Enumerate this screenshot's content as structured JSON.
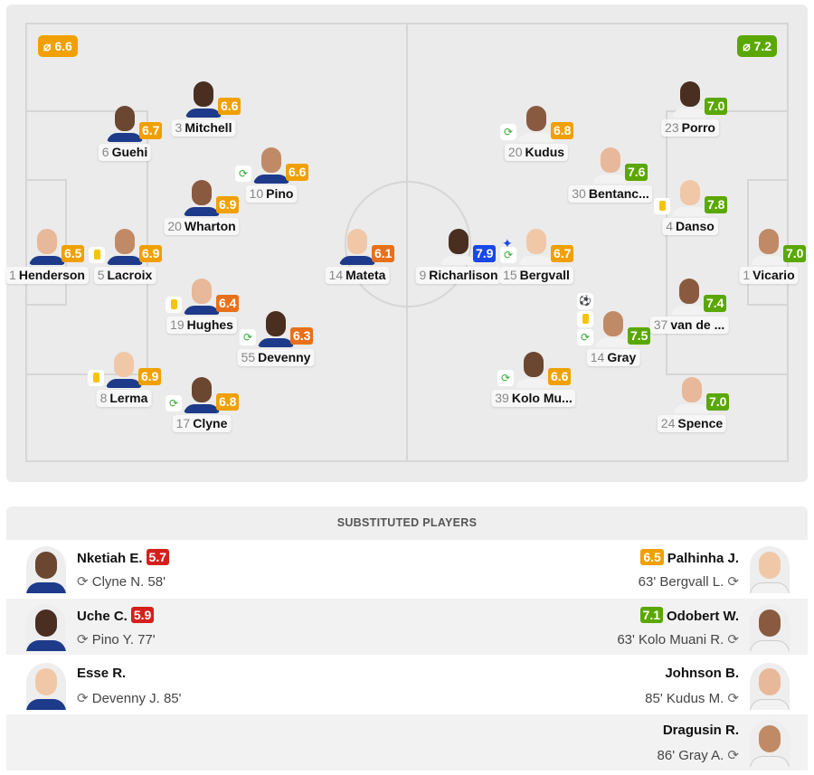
{
  "colors": {
    "green": "#5aa700",
    "orange": "#f0a000",
    "darkorange": "#e8701a",
    "red": "#d4201c",
    "blue": "#1848e8"
  },
  "home": {
    "average": "⌀ 6.6",
    "players": [
      {
        "num": "1",
        "name": "Henderson",
        "rating": "6.5",
        "events": []
      },
      {
        "num": "5",
        "name": "Lacroix",
        "rating": "6.9",
        "events": [
          "yellow-card"
        ]
      },
      {
        "num": "6",
        "name": "Guehi",
        "rating": "6.7",
        "events": []
      },
      {
        "num": "3",
        "name": "Mitchell",
        "rating": "6.6",
        "events": []
      },
      {
        "num": "8",
        "name": "Lerma",
        "rating": "6.9",
        "events": [
          "yellow-card"
        ]
      },
      {
        "num": "20",
        "name": "Wharton",
        "rating": "6.9",
        "events": []
      },
      {
        "num": "19",
        "name": "Hughes",
        "rating": "6.4",
        "events": [
          "yellow-card"
        ]
      },
      {
        "num": "10",
        "name": "Pino",
        "rating": "6.6",
        "events": [
          "substitution"
        ]
      },
      {
        "num": "17",
        "name": "Clyne",
        "rating": "6.8",
        "events": [
          "substitution"
        ]
      },
      {
        "num": "55",
        "name": "Devenny",
        "rating": "6.3",
        "events": [
          "substitution"
        ]
      },
      {
        "num": "14",
        "name": "Mateta",
        "rating": "6.1",
        "events": []
      }
    ]
  },
  "away": {
    "average": "⌀ 7.2",
    "players": [
      {
        "num": "9",
        "name": "Richarlison",
        "rating": "7.9",
        "events": [
          "top-player"
        ]
      },
      {
        "num": "15",
        "name": "Bergvall",
        "rating": "6.7",
        "events": [
          "substitution"
        ]
      },
      {
        "num": "20",
        "name": "Kudus",
        "rating": "6.8",
        "events": [
          "substitution"
        ]
      },
      {
        "num": "30",
        "name": "Bentanc...",
        "rating": "7.6",
        "events": []
      },
      {
        "num": "14",
        "name": "Gray",
        "rating": "7.5",
        "events": [
          "goal",
          "yellow-card",
          "substitution"
        ]
      },
      {
        "num": "39",
        "name": "Kolo Mu...",
        "rating": "6.6",
        "events": [
          "substitution"
        ]
      },
      {
        "num": "23",
        "name": "Porro",
        "rating": "7.0",
        "events": []
      },
      {
        "num": "4",
        "name": "Danso",
        "rating": "7.8",
        "events": [
          "yellow-card"
        ]
      },
      {
        "num": "37",
        "name": "van de ...",
        "rating": "7.4",
        "events": []
      },
      {
        "num": "24",
        "name": "Spence",
        "rating": "7.0",
        "events": []
      },
      {
        "num": "1",
        "name": "Vicario",
        "rating": "7.0",
        "events": []
      }
    ]
  },
  "subs": {
    "title": "SUBSTITUTED PLAYERS",
    "rows": [
      {
        "home": {
          "name": "Nketiah E.",
          "rating": "5.7",
          "info": "Clyne N. 58'"
        },
        "away": {
          "name": "Palhinha J.",
          "rating": "6.5",
          "info": "63' Bergvall L."
        }
      },
      {
        "home": {
          "name": "Uche C.",
          "rating": "5.9",
          "info": "Pino Y. 77'"
        },
        "away": {
          "name": "Odobert W.",
          "rating": "7.1",
          "info": "63' Kolo Muani R."
        }
      },
      {
        "home": {
          "name": "Esse R.",
          "rating": "",
          "info": "Devenny J. 85'"
        },
        "away": {
          "name": "Johnson B.",
          "rating": "",
          "info": "85' Kudus M."
        }
      },
      {
        "home": null,
        "away": {
          "name": "Dragusin R.",
          "rating": "",
          "info": "86' Gray A."
        }
      }
    ]
  }
}
